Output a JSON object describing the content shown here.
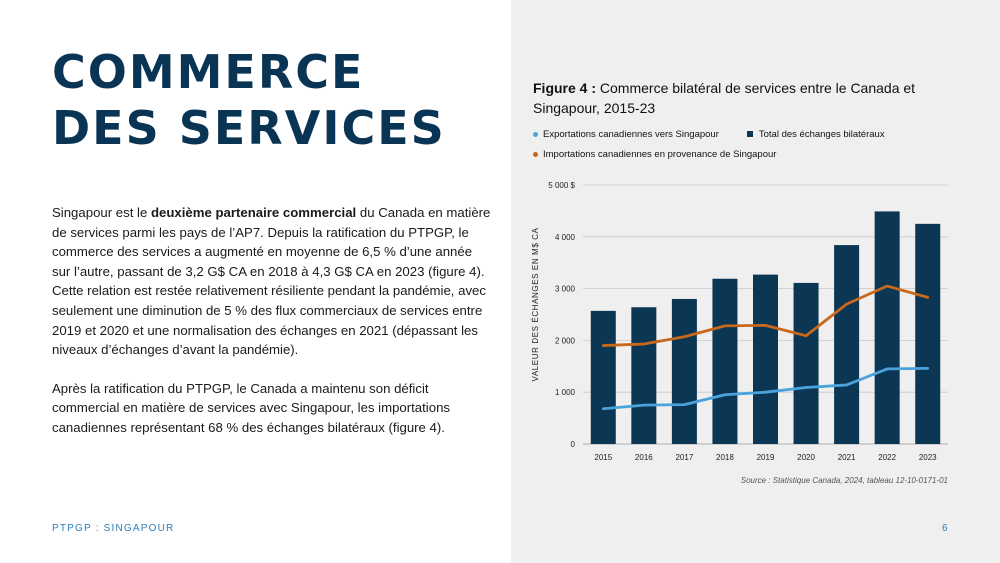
{
  "title": {
    "line1": "COMMERCE",
    "line2": "DES SERVICES"
  },
  "body": {
    "p1_pre": "Singapour est le ",
    "p1_bold": "deuxième partenaire commercial",
    "p1_post": " du Canada en matière de services parmi les pays de l’AP7. Depuis la ratification du PTPGP, le commerce des services a augmenté en moyenne de 6,5 % d’une année sur l’autre, passant de 3,2 G$ CA en 2018 à 4,3 G$ CA en 2023 (figure 4). Cette relation est restée relativement résiliente pendant la pandémie, avec seulement une diminution de 5 % des flux commerciaux de services entre 2019 et 2020 et une normalisation des échanges en 2021 (dépassant les niveaux d’échanges d’avant la pandémie).",
    "p2": "Après la ratification du PTPGP, le Canada a maintenu son déficit commercial en matière de services avec Singapour, les importations canadiennes représentant 68 % des échanges bilatéraux (figure 4)."
  },
  "footer": {
    "left": "PTPGP : SINGAPOUR",
    "page": "6"
  },
  "figure": {
    "label": "Figure 4 :",
    "title": " Commerce bilatéral de services entre le Canada et Singapour, 2015-23",
    "source": "Source : Statistique Canada, 2024, tableau 12-10-0171-01"
  },
  "colors": {
    "navy": "#0b3654",
    "exports": "#4aa3db",
    "imports": "#c8681c",
    "heading": "#0a3454",
    "accent": "#2e7fb8"
  },
  "chart_data": {
    "type": "bar",
    "categories": [
      "2015",
      "2016",
      "2017",
      "2018",
      "2019",
      "2020",
      "2021",
      "2022",
      "2023"
    ],
    "ylabel": "VALEUR DES ÉCHANGES EN M$ CA",
    "ylim": [
      0,
      5000
    ],
    "yticks": [
      0,
      1000,
      2000,
      3000,
      4000,
      5000
    ],
    "ytick_labels": [
      "0",
      "1 000",
      "2 000",
      "3 000",
      "4 000",
      "5 000 $"
    ],
    "grid": true,
    "legend_position": "top",
    "series": [
      {
        "name": "Exportations canadiennes vers Singapour",
        "type": "line",
        "color": "#4aa3db",
        "values": [
          680,
          750,
          760,
          950,
          1000,
          1090,
          1140,
          1450,
          1460
        ]
      },
      {
        "name": "Total des échanges bilatéraux",
        "type": "bar",
        "color": "#0b3654",
        "values": [
          2570,
          2640,
          2800,
          3190,
          3270,
          3110,
          3840,
          4490,
          4250
        ]
      },
      {
        "name": "Importations canadiennes en provenance de Singapour",
        "type": "line",
        "color": "#c8681c",
        "values": [
          1900,
          1930,
          2070,
          2280,
          2290,
          2090,
          2700,
          3050,
          2830
        ]
      }
    ]
  }
}
